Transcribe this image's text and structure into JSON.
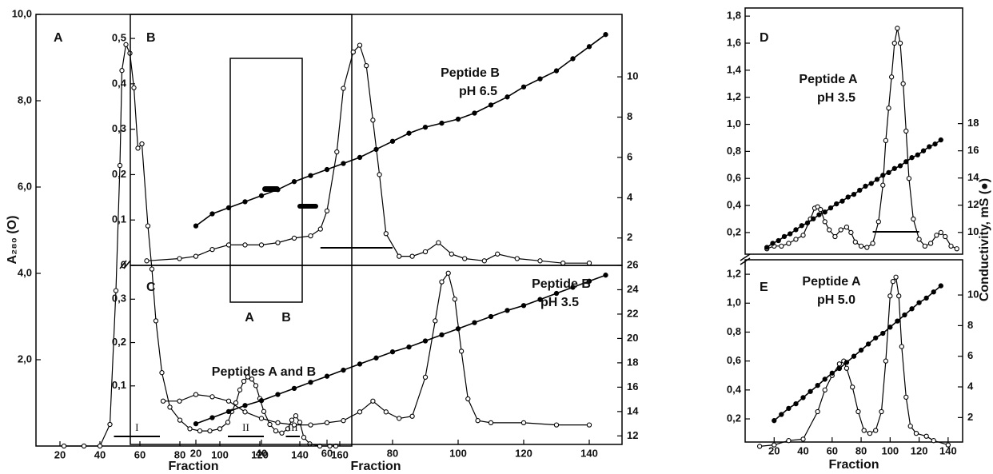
{
  "chart_data": [
    {
      "type": "line",
      "panel": "A",
      "ylabel": "A₂₈₀ (O)",
      "xlabel": "Fraction",
      "xlim": [
        8,
        166
      ],
      "xticks": [
        20,
        40,
        60,
        80,
        100,
        120,
        140,
        160
      ],
      "ylim": [
        0,
        10
      ],
      "yticks": [
        {
          "value": 2,
          "label": "2,0"
        },
        {
          "value": 4,
          "label": "4,0"
        },
        {
          "value": 6,
          "label": "6,0"
        },
        {
          "value": 8,
          "label": "8,0"
        },
        {
          "value": 10,
          "label": "10,0"
        }
      ],
      "series": [
        {
          "marker": "open",
          "color": "#000000",
          "x": [
            22,
            32,
            40,
            45,
            48,
            50,
            51,
            53,
            55,
            57,
            59,
            61,
            64,
            66,
            68,
            71,
            75,
            80,
            85,
            90,
            95,
            100,
            104,
            106,
            108,
            110,
            112,
            114,
            116,
            118,
            120,
            122,
            125,
            128,
            131,
            134,
            136,
            138,
            140,
            142,
            145,
            150,
            155,
            158
          ],
          "values": [
            0,
            0,
            0,
            0.5,
            3.6,
            6.5,
            8.7,
            9.3,
            9.1,
            8.3,
            6.9,
            7.0,
            5.1,
            4.1,
            2.9,
            1.7,
            0.9,
            0.6,
            0.4,
            0.35,
            0.35,
            0.4,
            0.55,
            0.8,
            1.0,
            1.3,
            1.5,
            1.6,
            1.55,
            1.4,
            1.1,
            0.8,
            0.5,
            0.35,
            0.3,
            0.4,
            0.6,
            0.7,
            0.55,
            0.2,
            0.05,
            0,
            0,
            0
          ]
        }
      ],
      "annotations": [
        "Peptides A and B"
      ],
      "pools": [
        {
          "label": "I",
          "x": [
            47,
            70
          ]
        },
        {
          "label": "II",
          "x": [
            104,
            122
          ]
        },
        {
          "label": "III",
          "x": [
            133,
            140
          ]
        }
      ],
      "inset_lanes": [
        "A",
        "B"
      ]
    },
    {
      "type": "line",
      "panel": "B",
      "xlim": [
        0,
        150
      ],
      "ylim": [
        0,
        0.553
      ],
      "yticks": [
        0,
        {
          "value": 0.1,
          "label": "0,1"
        },
        {
          "value": 0.2,
          "label": "0,2"
        },
        {
          "value": 0.3,
          "label": "0,3"
        },
        {
          "value": 0.4,
          "label": "0,4"
        },
        {
          "value": 0.5,
          "label": "0,5"
        }
      ],
      "y2lim": [
        0.64,
        13.1
      ],
      "y2ticks": [
        2,
        4,
        6,
        8,
        10
      ],
      "series": [
        {
          "marker": "open",
          "color": "#000000",
          "x": [
            5,
            15,
            20,
            25,
            30,
            35,
            40,
            45,
            50,
            55,
            58,
            60,
            63,
            65,
            68,
            70,
            72,
            74,
            76,
            78,
            82,
            86,
            90,
            94,
            98,
            102,
            108,
            112,
            118,
            125,
            132,
            140
          ],
          "values": [
            0.01,
            0.015,
            0.02,
            0.035,
            0.045,
            0.045,
            0.045,
            0.05,
            0.06,
            0.065,
            0.08,
            0.12,
            0.25,
            0.39,
            0.47,
            0.485,
            0.44,
            0.32,
            0.2,
            0.07,
            0.02,
            0.02,
            0.03,
            0.05,
            0.025,
            0.015,
            0.01,
            0.025,
            0.015,
            0.01,
            0.005,
            0.005
          ]
        },
        {
          "marker": "filled",
          "color": "#000000",
          "axis": "y2",
          "x": [
            20,
            25,
            30,
            35,
            40,
            45,
            50,
            55,
            60,
            65,
            70,
            75,
            80,
            85,
            90,
            95,
            100,
            105,
            110,
            115,
            120,
            125,
            130,
            135,
            140,
            145
          ],
          "values": [
            2.6,
            3.2,
            3.5,
            3.8,
            4.1,
            4.4,
            4.8,
            5.1,
            5.4,
            5.7,
            6.0,
            6.4,
            6.8,
            7.2,
            7.5,
            7.7,
            7.9,
            8.2,
            8.6,
            9.0,
            9.5,
            9.9,
            10.3,
            10.9,
            11.5,
            12.1
          ]
        }
      ],
      "annotations": [
        "Peptide B",
        "pH 6.5"
      ],
      "pools": [
        {
          "x": [
            58,
            80
          ]
        }
      ]
    },
    {
      "type": "line",
      "panel": "C",
      "xlabel": "Fraction",
      "xlim": [
        0,
        150
      ],
      "xticks": [
        20,
        40,
        60,
        80,
        100,
        120,
        140
      ],
      "ylim": [
        -0.035,
        0.378
      ],
      "yticks": [
        {
          "value": 0.1,
          "label": "0,1"
        },
        {
          "value": 0.2,
          "label": "0,2"
        },
        {
          "value": 0.3,
          "label": "0,3"
        }
      ],
      "y2lim": [
        11.3,
        26
      ],
      "y2ticks": [
        12,
        14,
        16,
        18,
        20,
        22,
        24,
        26
      ],
      "series": [
        {
          "marker": "open",
          "color": "#000000",
          "x": [
            10,
            15,
            20,
            25,
            30,
            35,
            40,
            45,
            50,
            55,
            60,
            65,
            70,
            74,
            78,
            82,
            86,
            90,
            93,
            95,
            97,
            99,
            101,
            103,
            106,
            110,
            120,
            130,
            140
          ],
          "values": [
            0.065,
            0.065,
            0.08,
            0.075,
            0.065,
            0.04,
            0.025,
            0.015,
            0.01,
            0.01,
            0.015,
            0.02,
            0.04,
            0.065,
            0.04,
            0.025,
            0.03,
            0.12,
            0.25,
            0.34,
            0.36,
            0.3,
            0.18,
            0.07,
            0.02,
            0.015,
            0.015,
            0.01,
            0.01
          ]
        },
        {
          "marker": "filled",
          "color": "#000000",
          "axis": "y2",
          "x": [
            20,
            25,
            30,
            35,
            40,
            45,
            50,
            55,
            60,
            65,
            70,
            75,
            80,
            85,
            90,
            95,
            100,
            105,
            110,
            115,
            120,
            125,
            130,
            135,
            140,
            145
          ],
          "values": [
            13.0,
            13.5,
            14.0,
            14.5,
            14.9,
            15.4,
            15.9,
            16.4,
            16.9,
            17.4,
            17.9,
            18.4,
            18.9,
            19.3,
            19.8,
            20.3,
            20.8,
            21.3,
            21.8,
            22.3,
            22.7,
            23.2,
            23.7,
            24.2,
            24.7,
            25.2
          ]
        }
      ],
      "annotations": [
        "Peptide B",
        "pH 3.5"
      ]
    },
    {
      "type": "line",
      "panel": "D",
      "y2label": "Conductivity, mS (●)",
      "xlim": [
        0,
        150
      ],
      "ylim": [
        0.04,
        1.86
      ],
      "yticks": [
        {
          "value": 0.2,
          "label": "0,2"
        },
        {
          "value": 0.4,
          "label": "0,4"
        },
        {
          "value": 0.6,
          "label": "0,6"
        },
        {
          "value": 0.8,
          "label": "0,8"
        },
        {
          "value": 1.0,
          "label": "1,0"
        },
        {
          "value": 1.2,
          "label": "1,2"
        },
        {
          "value": 1.4,
          "label": "1,4"
        },
        {
          "value": 1.6,
          "label": "1,6"
        },
        {
          "value": 1.8,
          "label": "1,8"
        }
      ],
      "y2lim": [
        8.4,
        26.5
      ],
      "y2ticks": [
        10,
        12,
        14,
        16,
        18
      ],
      "series": [
        {
          "marker": "open",
          "color": "#000000",
          "x": [
            15,
            20,
            25,
            30,
            35,
            40,
            45,
            48,
            50,
            52,
            55,
            58,
            62,
            66,
            70,
            73,
            76,
            80,
            84,
            88,
            92,
            95,
            97,
            99,
            101,
            103,
            105,
            107,
            109,
            111,
            113,
            116,
            120,
            124,
            128,
            132,
            135,
            138,
            142,
            146
          ],
          "values": [
            0.08,
            0.1,
            0.1,
            0.12,
            0.15,
            0.18,
            0.3,
            0.38,
            0.39,
            0.37,
            0.28,
            0.22,
            0.17,
            0.22,
            0.24,
            0.2,
            0.13,
            0.1,
            0.09,
            0.12,
            0.28,
            0.55,
            0.88,
            1.12,
            1.35,
            1.6,
            1.71,
            1.6,
            1.3,
            0.95,
            0.6,
            0.3,
            0.15,
            0.1,
            0.12,
            0.18,
            0.2,
            0.17,
            0.1,
            0.08
          ]
        },
        {
          "marker": "filled",
          "color": "#000000",
          "axis": "y2",
          "x": [
            15,
            19,
            23,
            27,
            31,
            35,
            39,
            43,
            47,
            51,
            55,
            59,
            63,
            67,
            71,
            75,
            79,
            83,
            87,
            91,
            95,
            99,
            103,
            107,
            111,
            115,
            119,
            123,
            127,
            131,
            135
          ],
          "values": [
            8.9,
            9.2,
            9.4,
            9.7,
            9.9,
            10.2,
            10.5,
            10.7,
            11.0,
            11.3,
            11.5,
            11.8,
            12.1,
            12.3,
            12.6,
            12.8,
            13.1,
            13.4,
            13.6,
            13.9,
            14.2,
            14.4,
            14.7,
            14.9,
            15.2,
            15.5,
            15.7,
            16.0,
            16.3,
            16.5,
            16.8
          ]
        }
      ],
      "annotations": [
        "Peptide A",
        "pH 3.5"
      ],
      "pools": [
        {
          "x": [
            88,
            120
          ]
        }
      ]
    },
    {
      "type": "line",
      "panel": "E",
      "xlabel": "Fraction",
      "xlim": [
        0,
        150
      ],
      "xticks": [
        20,
        40,
        60,
        80,
        100,
        120,
        140
      ],
      "ylim": [
        0.04,
        1.3
      ],
      "yticks": [
        {
          "value": 0.2,
          "label": "0,2"
        },
        {
          "value": 0.4,
          "label": "0,4"
        },
        {
          "value": 0.6,
          "label": "0,6"
        },
        {
          "value": 0.8,
          "label": "0,8"
        },
        {
          "value": 1.0,
          "label": "1,0"
        },
        {
          "value": 1.2,
          "label": "1,2"
        }
      ],
      "y2lim": [
        0.4,
        12.3
      ],
      "y2ticks": [
        2,
        4,
        6,
        8,
        10
      ],
      "series": [
        {
          "marker": "open",
          "color": "#000000",
          "x": [
            10,
            20,
            30,
            40,
            50,
            55,
            60,
            65,
            68,
            70,
            74,
            78,
            82,
            86,
            90,
            94,
            97,
            100,
            102,
            104,
            106,
            108,
            111,
            114,
            118,
            125,
            130,
            140
          ],
          "values": [
            0.01,
            0.02,
            0.05,
            0.06,
            0.25,
            0.4,
            0.5,
            0.58,
            0.6,
            0.55,
            0.42,
            0.25,
            0.12,
            0.1,
            0.12,
            0.25,
            0.6,
            1.05,
            1.15,
            1.18,
            1.05,
            0.7,
            0.35,
            0.15,
            0.1,
            0.08,
            0.05,
            0.02
          ]
        },
        {
          "marker": "filled",
          "color": "#000000",
          "axis": "y2",
          "x": [
            20,
            25,
            30,
            35,
            40,
            45,
            50,
            55,
            60,
            65,
            70,
            75,
            80,
            85,
            90,
            95,
            100,
            105,
            110,
            115,
            120,
            125,
            130,
            135
          ],
          "values": [
            1.8,
            2.2,
            2.6,
            2.9,
            3.3,
            3.7,
            4.1,
            4.5,
            4.9,
            5.2,
            5.6,
            6.0,
            6.4,
            6.8,
            7.2,
            7.5,
            7.9,
            8.3,
            8.7,
            9.1,
            9.5,
            9.8,
            10.2,
            10.6
          ]
        }
      ],
      "annotations": [
        "Peptide A",
        "pH 5.0"
      ]
    }
  ]
}
